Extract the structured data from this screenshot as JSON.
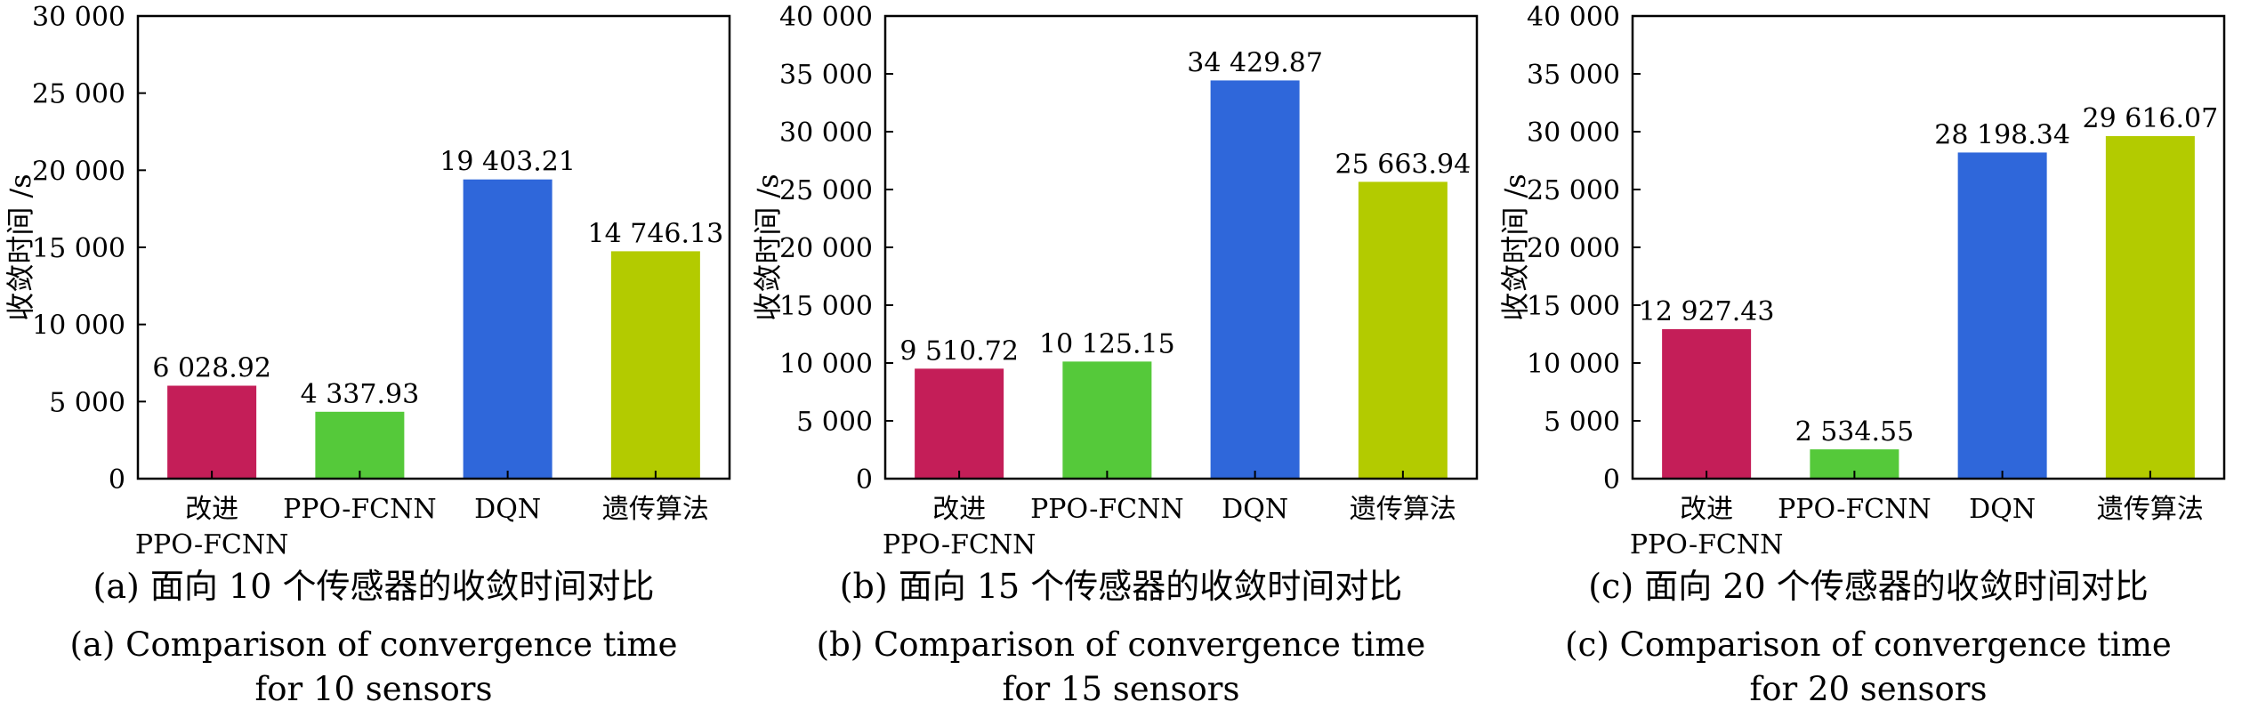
{
  "figure": {
    "panels": [
      {
        "caption_zh": "(a) 面向 10 个传感器的收敛时间对比",
        "caption_en_line1": "(a) Comparison of convergence time",
        "caption_en_line2": "for 10 sensors"
      },
      {
        "caption_zh": "(b) 面向 15 个传感器的收敛时间对比",
        "caption_en_line1": "(b) Comparison of convergence time",
        "caption_en_line2": "for 15 sensors"
      },
      {
        "caption_zh": "(c) 面向 20 个传感器的收敛时间对比",
        "caption_en_line1": "(c) Comparison of convergence time",
        "caption_en_line2": "for 20 sensors"
      }
    ]
  },
  "chart_data": [
    {
      "type": "bar",
      "title": "",
      "xlabel": "",
      "ylabel": "收敛时间 /s",
      "categories": [
        [
          "改进",
          "PPO-FCNN"
        ],
        [
          "PPO-FCNN"
        ],
        [
          "DQN"
        ],
        [
          "遗传算法"
        ]
      ],
      "values": [
        6028.92,
        4337.93,
        19403.21,
        14746.13
      ],
      "value_labels": [
        "6 028.92",
        "4 337.93",
        "19 403.21",
        "14 746.13"
      ],
      "colors": [
        "#c41e58",
        "#55c93a",
        "#2f67da",
        "#b3cb00"
      ],
      "ylim": [
        0,
        30000
      ],
      "yticks": [
        0,
        5000,
        10000,
        15000,
        20000,
        25000,
        30000
      ],
      "ytick_labels": [
        "0",
        "5 000",
        "10 000",
        "15 000",
        "20 000",
        "25 000",
        "30 000"
      ],
      "grid": false,
      "legend": "none"
    },
    {
      "type": "bar",
      "title": "",
      "xlabel": "",
      "ylabel": "收敛时间 /s",
      "categories": [
        [
          "改进",
          "PPO-FCNN"
        ],
        [
          "PPO-FCNN"
        ],
        [
          "DQN"
        ],
        [
          "遗传算法"
        ]
      ],
      "values": [
        9510.72,
        10125.15,
        34429.87,
        25663.94
      ],
      "value_labels": [
        "9 510.72",
        "10 125.15",
        "34 429.87",
        "25 663.94"
      ],
      "colors": [
        "#c41e58",
        "#55c93a",
        "#2f67da",
        "#b3cb00"
      ],
      "ylim": [
        0,
        40000
      ],
      "yticks": [
        0,
        5000,
        10000,
        15000,
        20000,
        25000,
        30000,
        35000,
        40000
      ],
      "ytick_labels": [
        "0",
        "5 000",
        "10 000",
        "15 000",
        "20 000",
        "25 000",
        "30 000",
        "35 000",
        "40 000"
      ],
      "grid": false,
      "legend": "none"
    },
    {
      "type": "bar",
      "title": "",
      "xlabel": "",
      "ylabel": "收敛时间 /s",
      "categories": [
        [
          "改进",
          "PPO-FCNN"
        ],
        [
          "PPO-FCNN"
        ],
        [
          "DQN"
        ],
        [
          "遗传算法"
        ]
      ],
      "values": [
        12927.43,
        2534.55,
        28198.34,
        29616.07
      ],
      "value_labels": [
        "12 927.43",
        "2 534.55",
        "28 198.34",
        "29 616.07"
      ],
      "colors": [
        "#c41e58",
        "#55c93a",
        "#2f67da",
        "#b3cb00"
      ],
      "ylim": [
        0,
        40000
      ],
      "yticks": [
        0,
        5000,
        10000,
        15000,
        20000,
        25000,
        30000,
        35000,
        40000
      ],
      "ytick_labels": [
        "0",
        "5 000",
        "10 000",
        "15 000",
        "20 000",
        "25 000",
        "30 000",
        "35 000",
        "40 000"
      ],
      "grid": false,
      "legend": "none"
    }
  ]
}
